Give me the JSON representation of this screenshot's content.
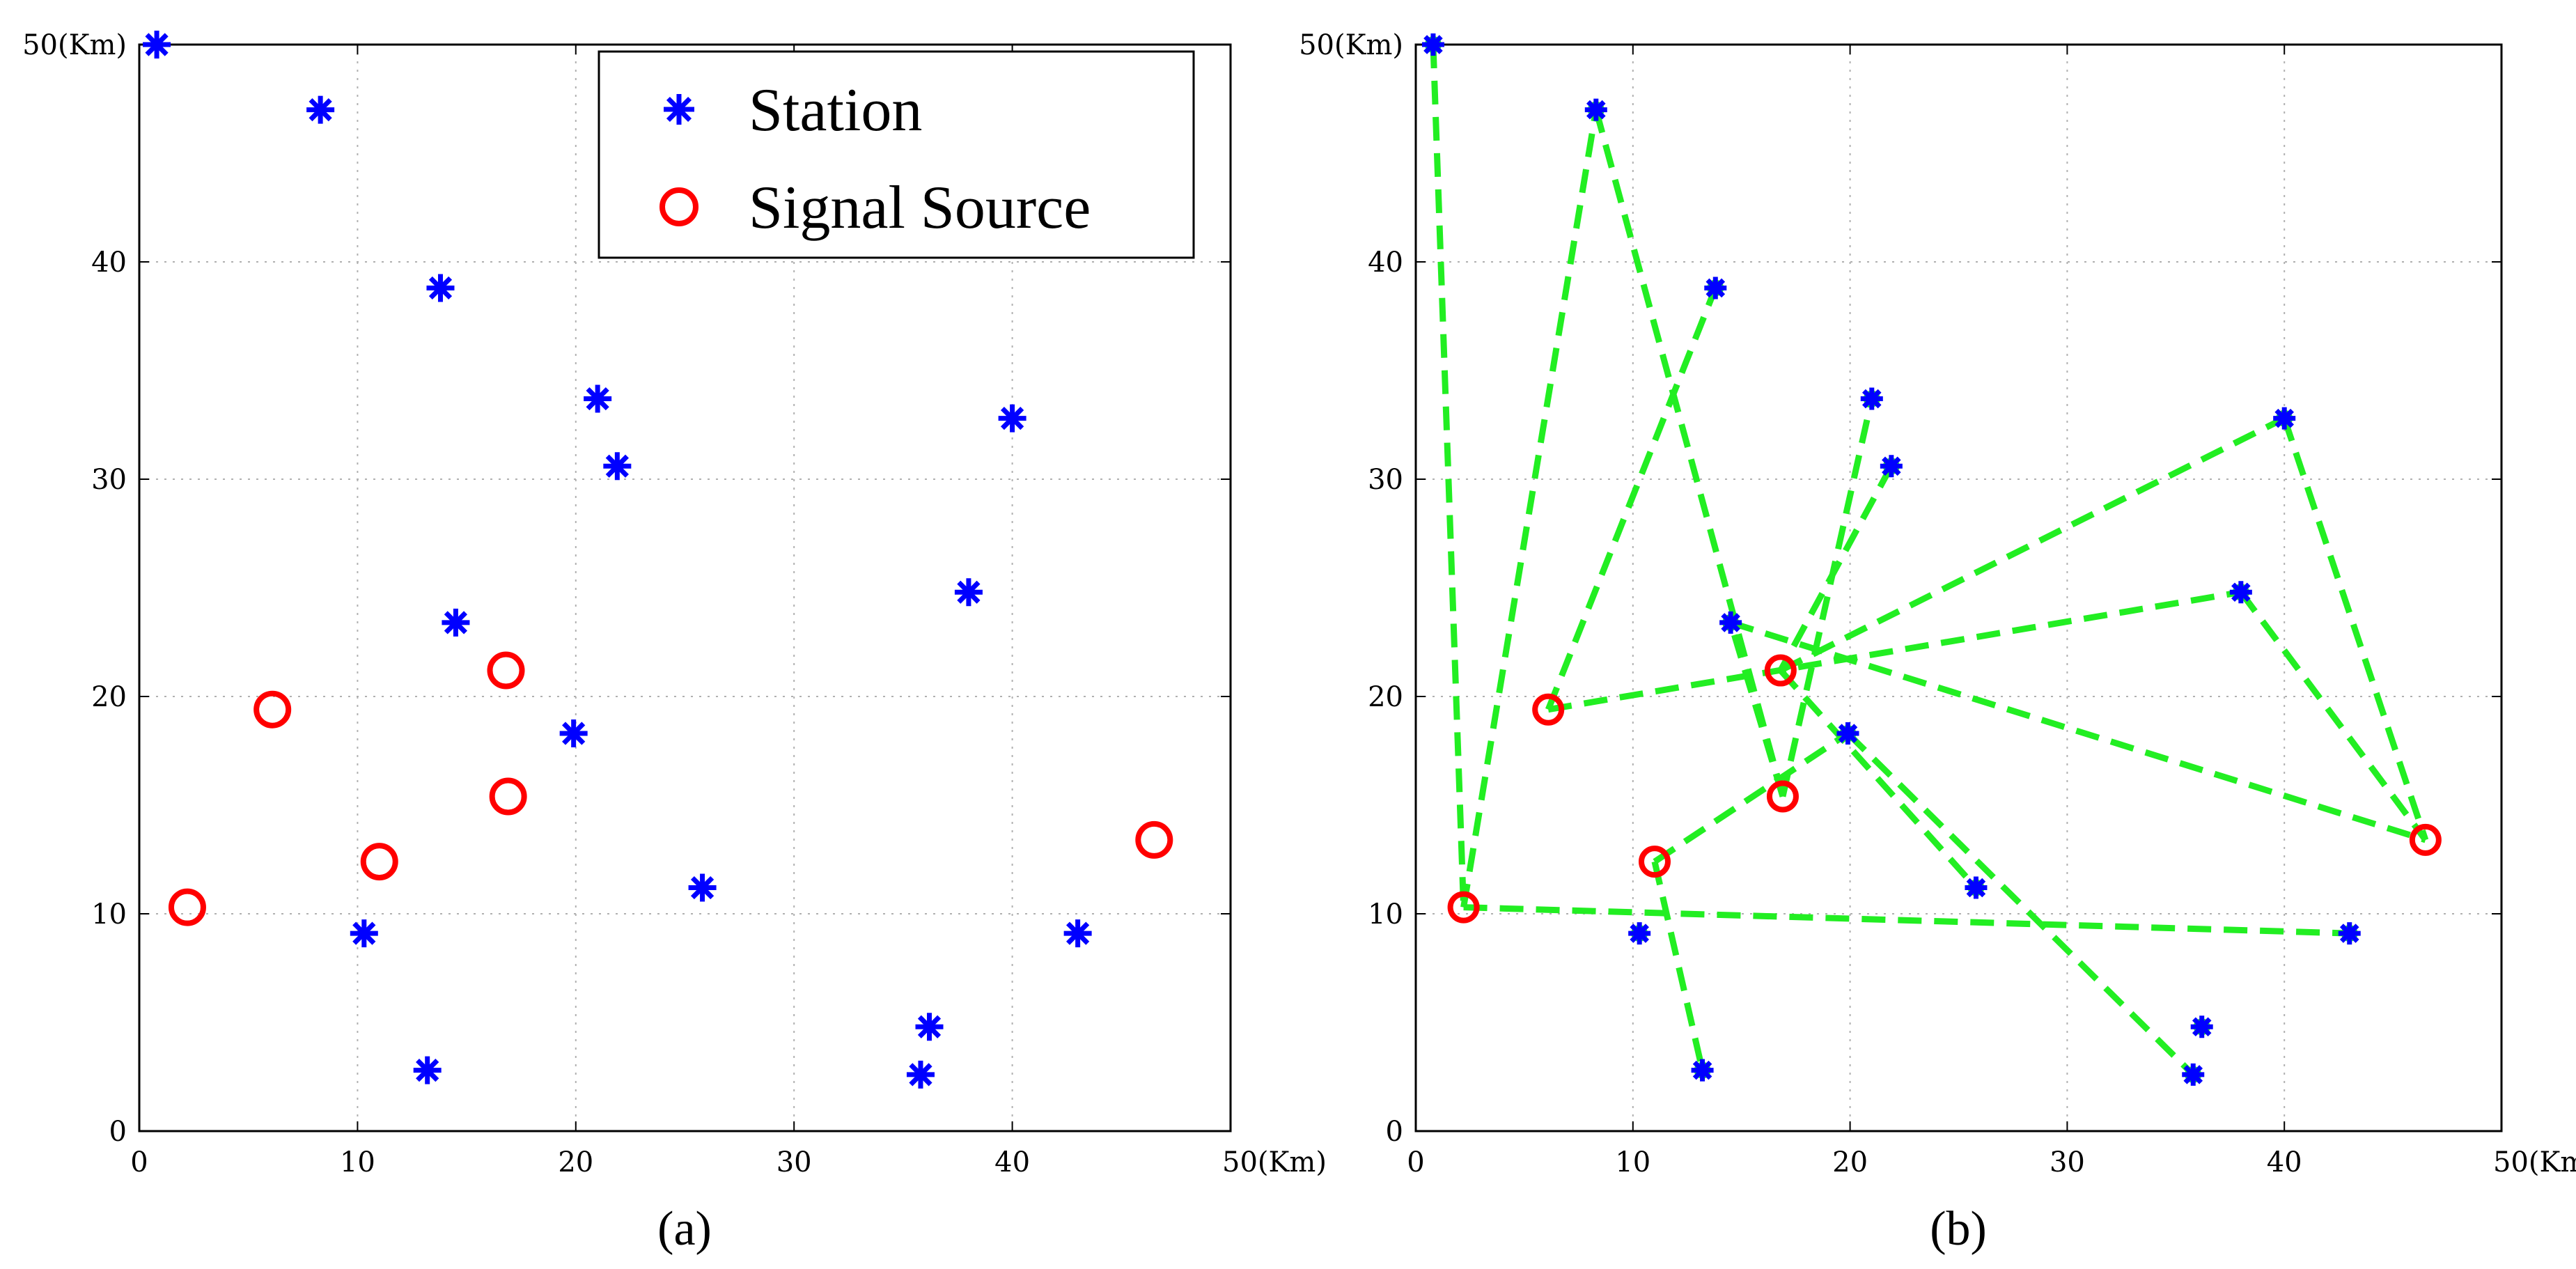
{
  "colors": {
    "station": "#0000ff",
    "source": "#ff0000",
    "link": "#22ee22",
    "axis": "#000000"
  },
  "icons": {
    "station_marker": "asterisk-marker-icon",
    "source_marker": "circle-marker-icon"
  },
  "chart_data": [
    {
      "type": "scatter",
      "panel_label": "(a)",
      "title": "",
      "xlabel": "",
      "ylabel": "",
      "xlim": [
        0,
        50
      ],
      "ylim": [
        0,
        50
      ],
      "x_ticks": [
        "0",
        "10",
        "20",
        "30",
        "40",
        "50(Km)"
      ],
      "y_ticks": [
        "0",
        "10",
        "20",
        "30",
        "40",
        "50(Km)"
      ],
      "grid": true,
      "legend": {
        "placement": "top-right",
        "entries": [
          "Station",
          "Signal Source"
        ]
      },
      "series": [
        {
          "name": "Station",
          "marker": "asterisk",
          "points": [
            [
              0.8,
              50
            ],
            [
              8.3,
              47
            ],
            [
              13.8,
              38.8
            ],
            [
              21,
              33.7
            ],
            [
              21.9,
              30.6
            ],
            [
              40,
              32.8
            ],
            [
              38,
              24.8
            ],
            [
              14.5,
              23.4
            ],
            [
              19.9,
              18.3
            ],
            [
              25.8,
              11.2
            ],
            [
              10.3,
              9.1
            ],
            [
              43,
              9.1
            ],
            [
              13.2,
              2.8
            ],
            [
              36.2,
              4.8
            ],
            [
              35.8,
              2.6
            ]
          ]
        },
        {
          "name": "Signal Source",
          "marker": "circle",
          "points": [
            [
              2.2,
              10.3
            ],
            [
              6.1,
              19.4
            ],
            [
              11,
              12.4
            ],
            [
              16.8,
              21.2
            ],
            [
              16.9,
              15.4
            ],
            [
              46.5,
              13.4
            ]
          ]
        }
      ]
    },
    {
      "type": "scatter",
      "panel_label": "(b)",
      "title": "",
      "xlabel": "",
      "ylabel": "",
      "xlim": [
        0,
        50
      ],
      "ylim": [
        0,
        50
      ],
      "x_ticks": [
        "0",
        "10",
        "20",
        "30",
        "40",
        "50(Km)"
      ],
      "y_ticks": [
        "0",
        "10",
        "20",
        "30",
        "40",
        "50(Km)"
      ],
      "grid": true,
      "series": [
        {
          "name": "Station",
          "marker": "asterisk",
          "points": [
            [
              0.8,
              50
            ],
            [
              8.3,
              47
            ],
            [
              13.8,
              38.8
            ],
            [
              21,
              33.7
            ],
            [
              21.9,
              30.6
            ],
            [
              40,
              32.8
            ],
            [
              38,
              24.8
            ],
            [
              14.5,
              23.4
            ],
            [
              19.9,
              18.3
            ],
            [
              25.8,
              11.2
            ],
            [
              10.3,
              9.1
            ],
            [
              43,
              9.1
            ],
            [
              13.2,
              2.8
            ],
            [
              36.2,
              4.8
            ],
            [
              35.8,
              2.6
            ]
          ]
        },
        {
          "name": "Signal Source",
          "marker": "circle",
          "points": [
            [
              2.2,
              10.3
            ],
            [
              6.1,
              19.4
            ],
            [
              11,
              12.4
            ],
            [
              16.8,
              21.2
            ],
            [
              16.9,
              15.4
            ],
            [
              46.5,
              13.4
            ]
          ]
        }
      ],
      "links": [
        [
          [
            0.8,
            50
          ],
          [
            2.2,
            10.3
          ]
        ],
        [
          [
            2.2,
            10.3
          ],
          [
            8.3,
            47
          ]
        ],
        [
          [
            2.2,
            10.3
          ],
          [
            43,
            9.1
          ]
        ],
        [
          [
            6.1,
            19.4
          ],
          [
            13.8,
            38.8
          ]
        ],
        [
          [
            6.1,
            19.4
          ],
          [
            38,
            24.8
          ]
        ],
        [
          [
            8.3,
            47
          ],
          [
            16.9,
            15.4
          ]
        ],
        [
          [
            16.9,
            15.4
          ],
          [
            21,
            33.7
          ]
        ],
        [
          [
            16.9,
            15.4
          ],
          [
            14.5,
            23.4
          ]
        ],
        [
          [
            21.9,
            30.6
          ],
          [
            16.8,
            21.2
          ]
        ],
        [
          [
            16.8,
            21.2
          ],
          [
            40,
            32.8
          ]
        ],
        [
          [
            14.5,
            23.4
          ],
          [
            46.5,
            13.4
          ]
        ],
        [
          [
            40,
            32.8
          ],
          [
            46.5,
            13.4
          ]
        ],
        [
          [
            38,
            24.8
          ],
          [
            46.5,
            13.4
          ]
        ],
        [
          [
            11,
            12.4
          ],
          [
            19.9,
            18.3
          ]
        ],
        [
          [
            11,
            12.4
          ],
          [
            13.2,
            2.8
          ]
        ],
        [
          [
            16.8,
            21.2
          ],
          [
            25.8,
            11.2
          ]
        ],
        [
          [
            19.9,
            18.3
          ],
          [
            35.8,
            2.6
          ]
        ]
      ]
    }
  ]
}
